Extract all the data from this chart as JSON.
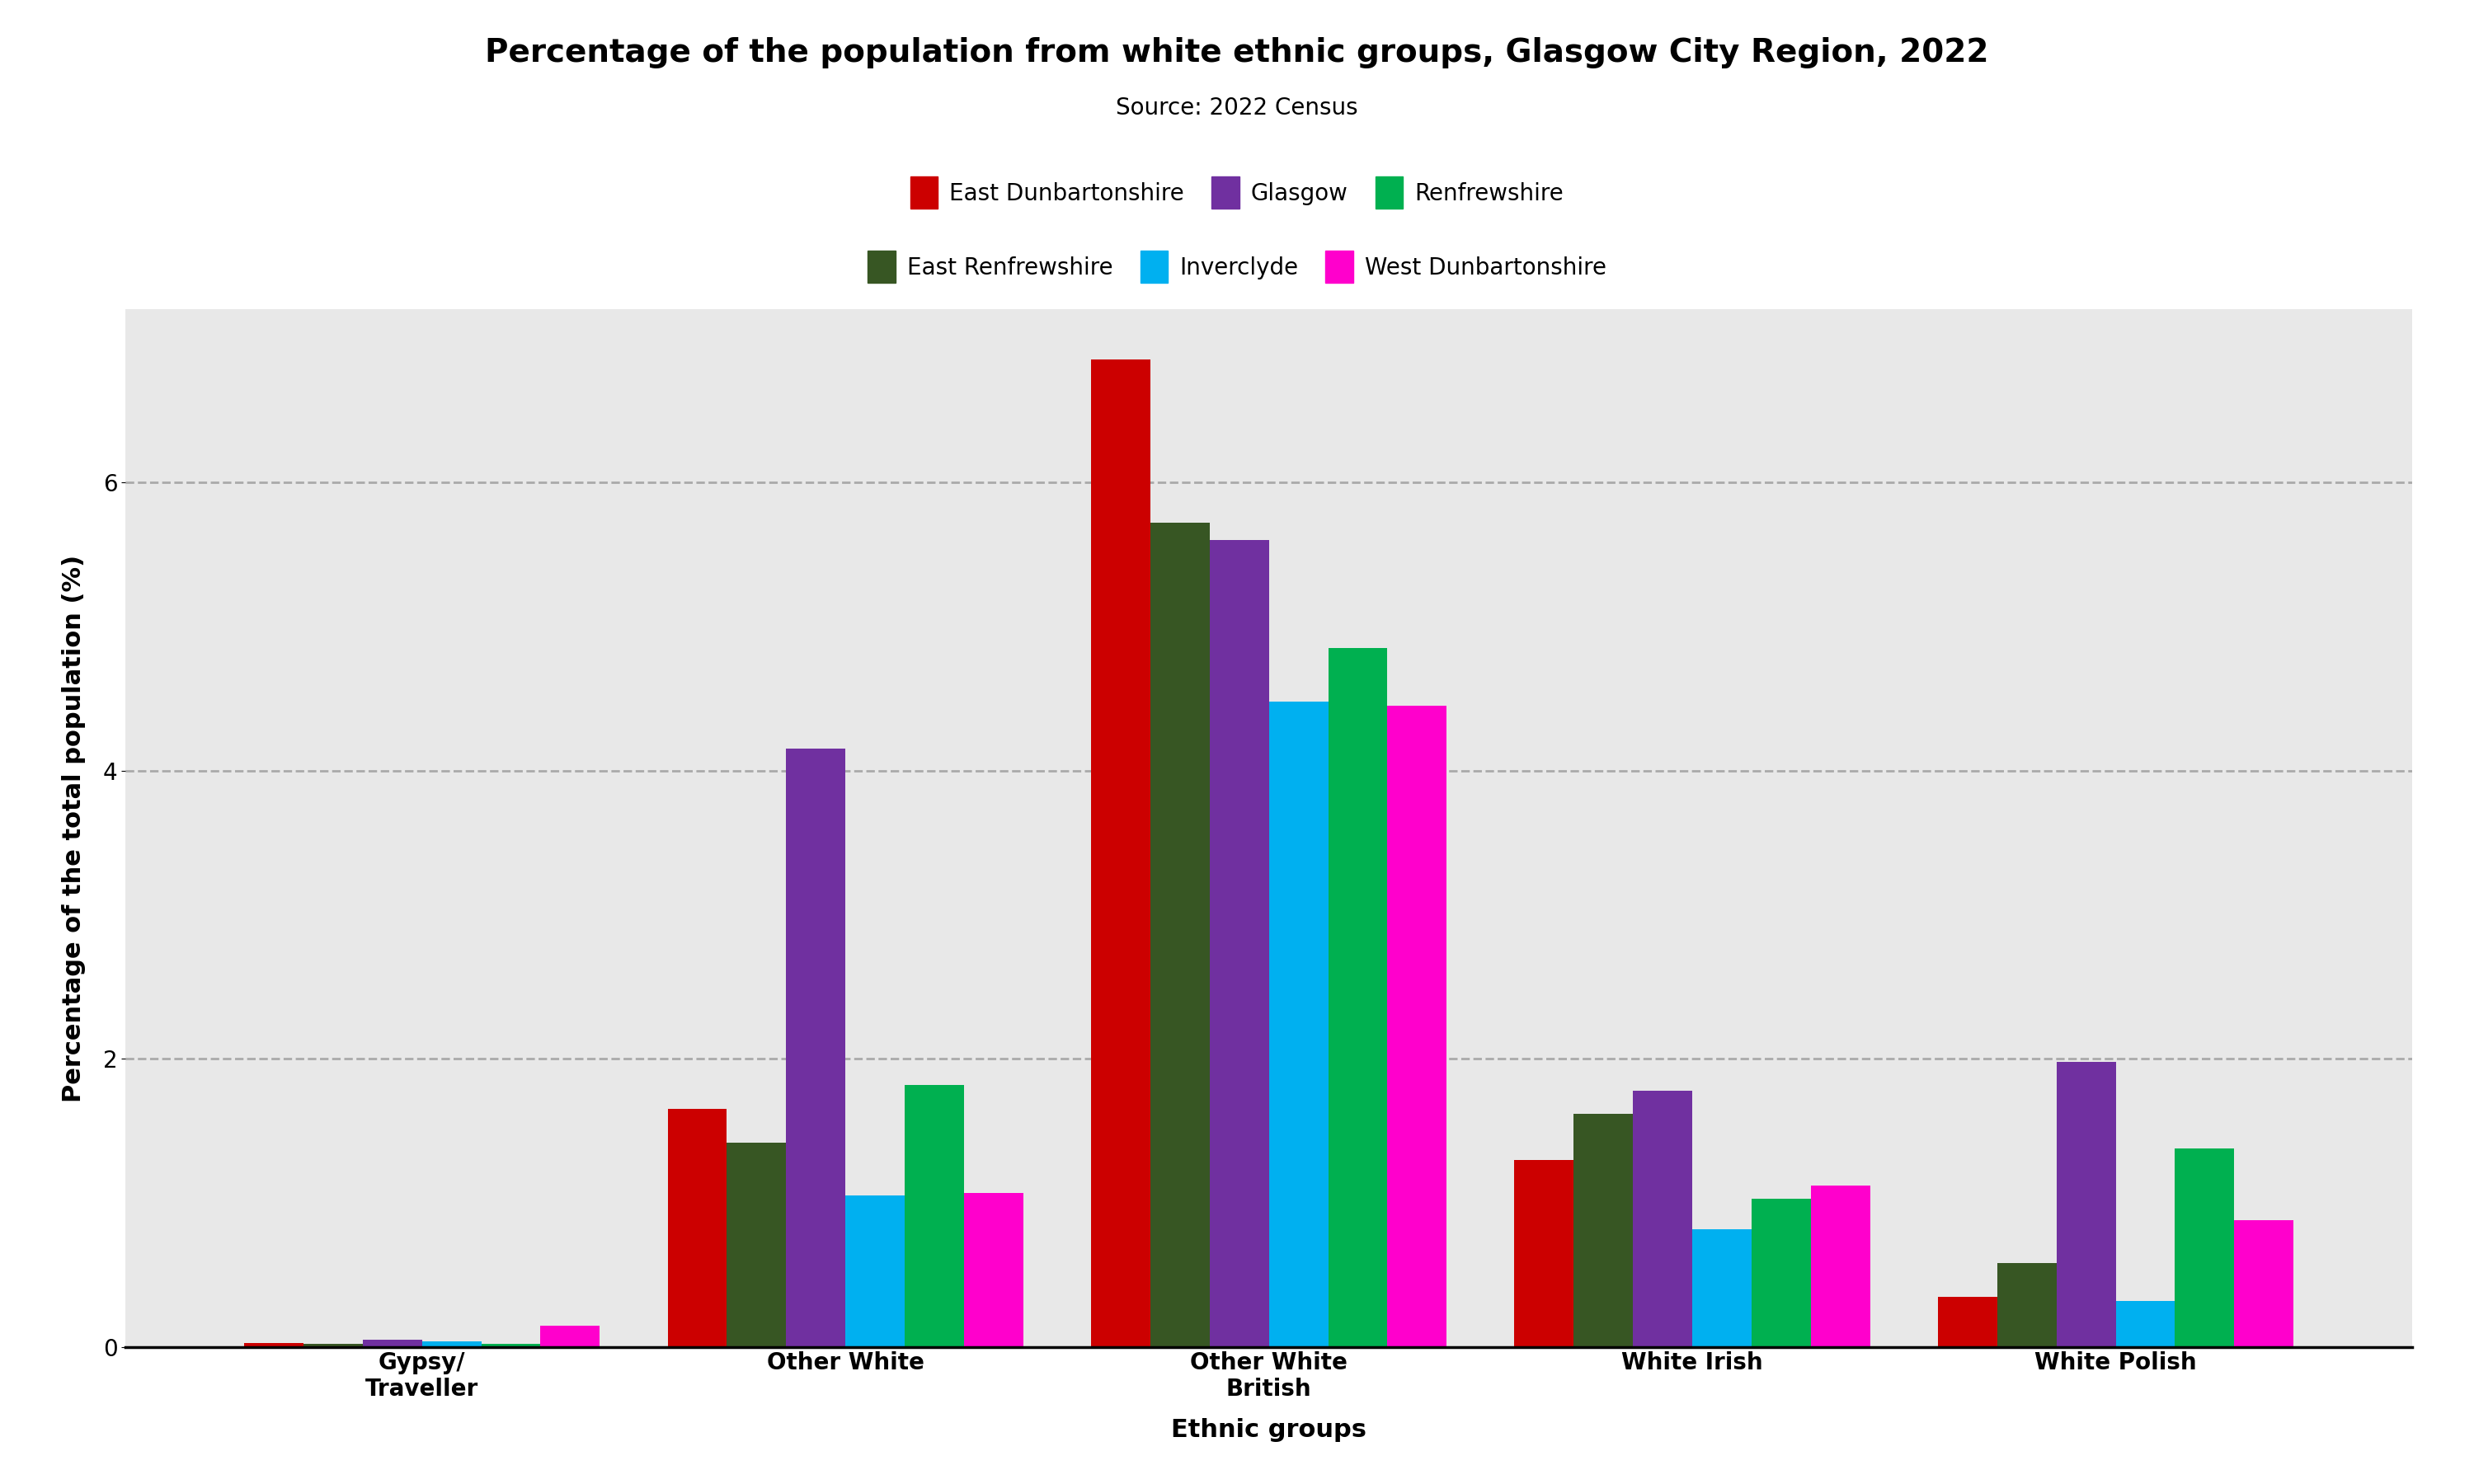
{
  "title": "Percentage of the population from white ethnic groups, Glasgow City Region, 2022",
  "source": "Source: 2022 Census",
  "xlabel": "Ethnic groups",
  "ylabel": "Percentage of the total population (%)",
  "categories": [
    "Gypsy/\nTraveller",
    "Other White",
    "Other White\nBritish",
    "White Irish",
    "White Polish"
  ],
  "series": [
    {
      "name": "East Dunbartonshire",
      "color": "#cc0000",
      "values": [
        0.03,
        1.65,
        6.85,
        1.3,
        0.35
      ]
    },
    {
      "name": "East Renfrewshire",
      "color": "#375623",
      "values": [
        0.02,
        1.42,
        5.72,
        1.62,
        0.58
      ]
    },
    {
      "name": "Glasgow",
      "color": "#7030a0",
      "values": [
        0.05,
        4.15,
        5.6,
        1.78,
        1.98
      ]
    },
    {
      "name": "Inverclyde",
      "color": "#00b0f0",
      "values": [
        0.04,
        1.05,
        4.48,
        0.82,
        0.32
      ]
    },
    {
      "name": "Renfrewshire",
      "color": "#00b050",
      "values": [
        0.02,
        1.82,
        4.85,
        1.03,
        1.38
      ]
    },
    {
      "name": "West Dunbartonshire",
      "color": "#ff00cc",
      "values": [
        0.15,
        1.07,
        4.45,
        1.12,
        0.88
      ]
    }
  ],
  "legend_row1": [
    "East Dunbartonshire",
    "Glasgow",
    "Renfrewshire"
  ],
  "legend_row2": [
    "East Renfrewshire",
    "Inverclyde",
    "West Dunbartonshire"
  ],
  "ylim": [
    0,
    7.2
  ],
  "yticks": [
    0,
    2,
    4,
    6
  ],
  "background_color": "#e8e8e8",
  "grid_color": "#aaaaaa",
  "title_fontsize": 28,
  "source_fontsize": 20,
  "axis_label_fontsize": 22,
  "tick_fontsize": 20,
  "legend_fontsize": 20
}
